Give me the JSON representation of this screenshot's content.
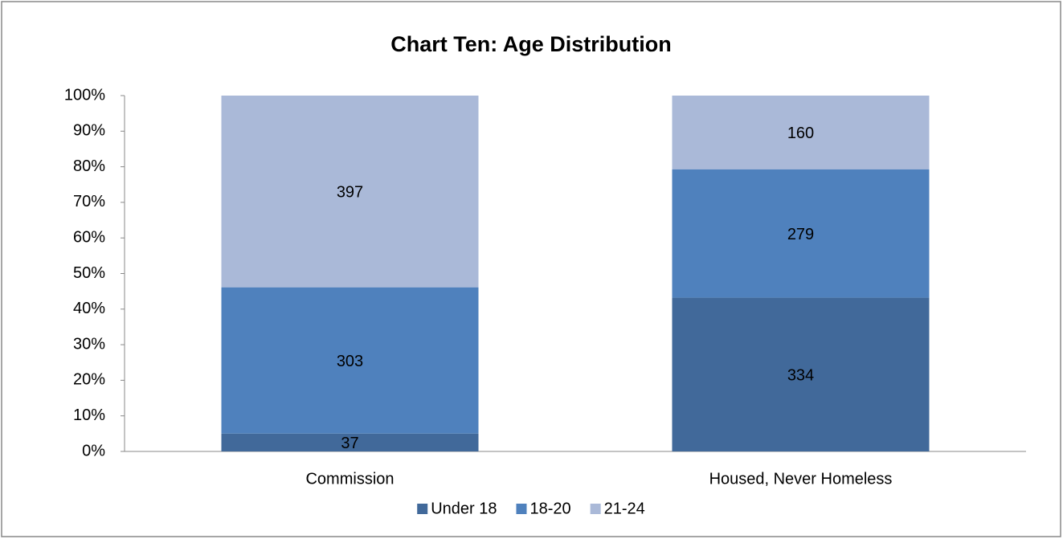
{
  "chart_data": {
    "type": "bar",
    "stacking": "percent",
    "title": "Chart Ten: Age Distribution",
    "categories": [
      "Commission",
      "Housed, Never Homeless"
    ],
    "series": [
      {
        "name": "Under 18",
        "color": "#41699a",
        "values": [
          37,
          334
        ]
      },
      {
        "name": "18-20",
        "color": "#4f81bd",
        "values": [
          303,
          279
        ]
      },
      {
        "name": "21-24",
        "color": "#aab9d8",
        "values": [
          397,
          160
        ]
      }
    ],
    "ylim": [
      0,
      100
    ],
    "yticks": [
      {
        "value": 0,
        "label": "0%"
      },
      {
        "value": 10,
        "label": "10%"
      },
      {
        "value": 20,
        "label": "20%"
      },
      {
        "value": 30,
        "label": "30%"
      },
      {
        "value": 40,
        "label": "40%"
      },
      {
        "value": 50,
        "label": "50%"
      },
      {
        "value": 60,
        "label": "60%"
      },
      {
        "value": 70,
        "label": "70%"
      },
      {
        "value": 80,
        "label": "80%"
      },
      {
        "value": 90,
        "label": "90%"
      },
      {
        "value": 100,
        "label": "100%"
      }
    ],
    "grid": false,
    "legend": "bottom"
  }
}
